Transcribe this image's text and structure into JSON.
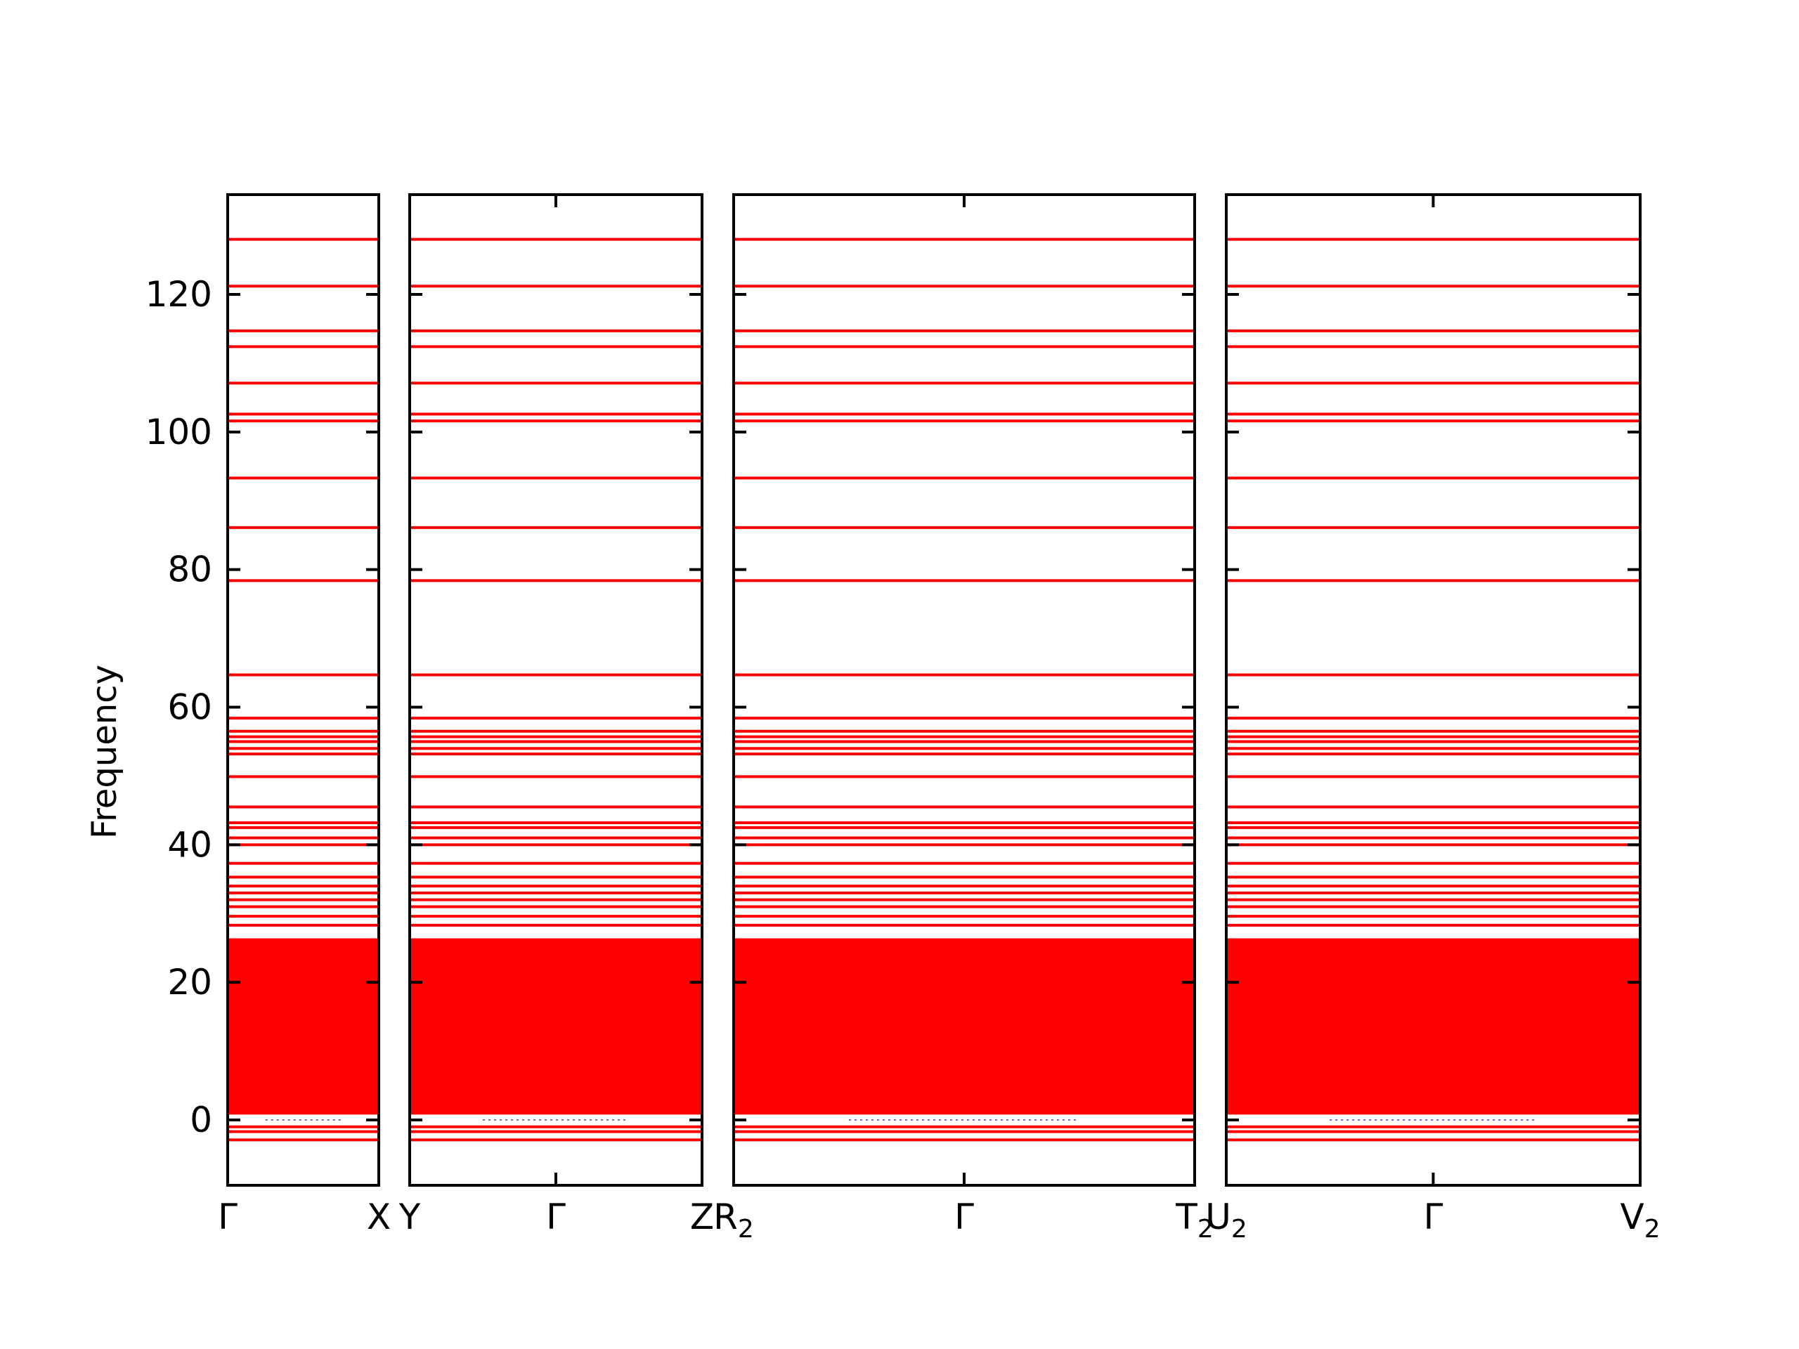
{
  "chart_data": {
    "type": "line",
    "title": "",
    "ylabel": "Frequency",
    "ylim": [
      -9.5,
      134.5
    ],
    "yticks": [
      0,
      20,
      40,
      60,
      80,
      100,
      120
    ],
    "grid": false,
    "line_color": "#ff0000",
    "panels": [
      {
        "ticks": [
          {
            "pos": 0,
            "label": "Γ"
          },
          {
            "pos": 1,
            "label": "X"
          }
        ],
        "center_tick": false
      },
      {
        "ticks": [
          {
            "pos": 0,
            "label": "Y"
          },
          {
            "pos": 0.5,
            "label": "Γ"
          },
          {
            "pos": 1,
            "label": "Z"
          }
        ],
        "center_tick": true
      },
      {
        "ticks": [
          {
            "pos": 0,
            "label": "R",
            "sub": "2"
          },
          {
            "pos": 0.5,
            "label": "Γ"
          },
          {
            "pos": 1,
            "label": "T",
            "sub": "2"
          }
        ],
        "center_tick": true
      },
      {
        "ticks": [
          {
            "pos": 0,
            "label": "U",
            "sub": "2"
          },
          {
            "pos": 0.5,
            "label": "Γ"
          },
          {
            "pos": 1,
            "label": "V",
            "sub": "2"
          }
        ],
        "center_tick": true
      }
    ],
    "bands": [
      128.0,
      121.2,
      114.7,
      112.4,
      107.1,
      102.6,
      101.6,
      93.3,
      86.1,
      78.4,
      64.7,
      58.4,
      56.5,
      55.7,
      55.0,
      54.0,
      53.2,
      49.9,
      45.5,
      43.2,
      42.5,
      41.0,
      40.0,
      37.3,
      35.3,
      34.0,
      33.0,
      32.0,
      31.0,
      29.6,
      28.3,
      1.0,
      -1.0,
      -1.7,
      -2.9
    ],
    "band_region": {
      "min": 0.8,
      "max": 26.4
    }
  }
}
